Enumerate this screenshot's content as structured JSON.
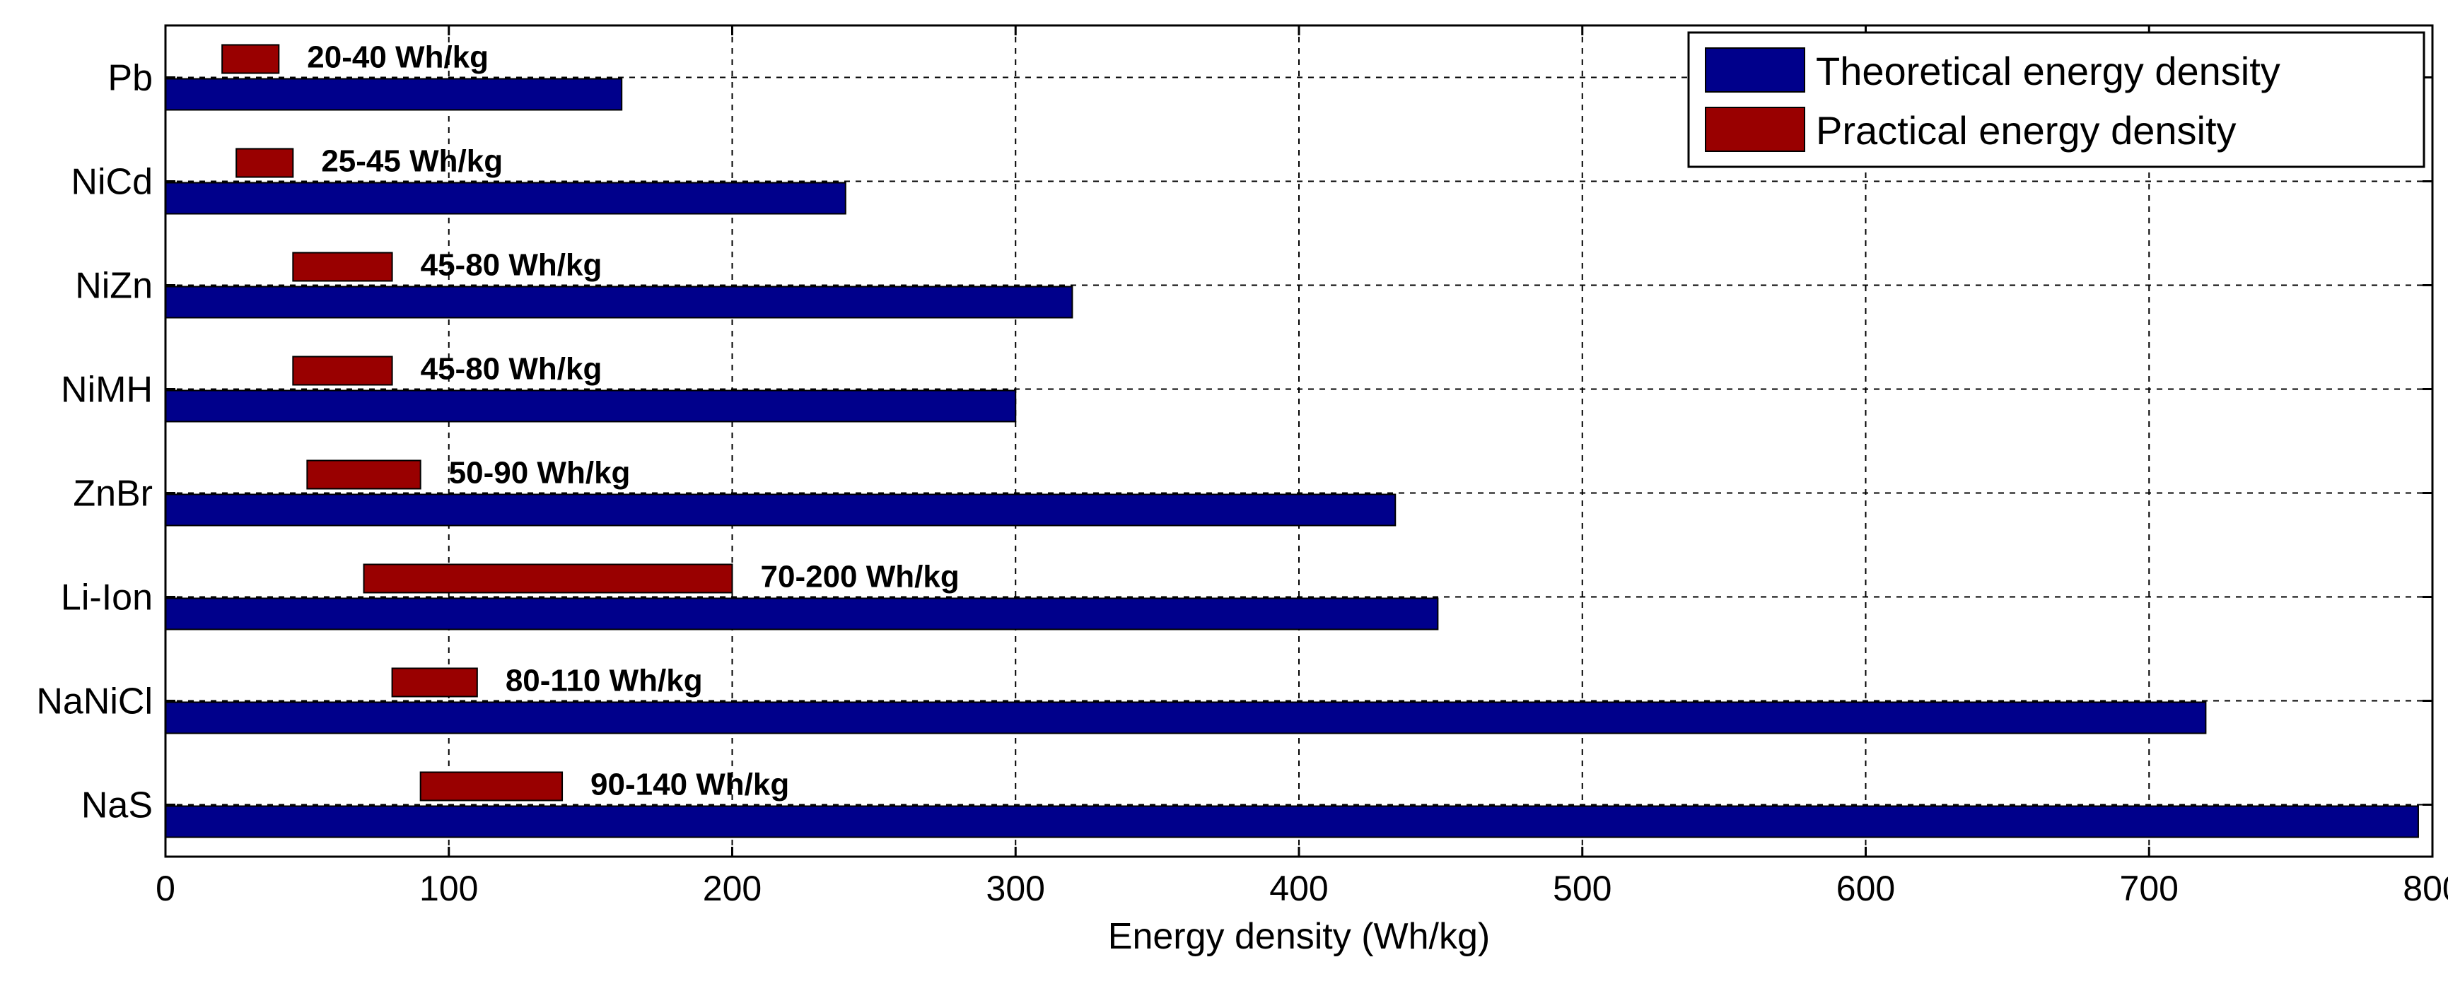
{
  "chart_data": {
    "type": "bar",
    "orientation": "horizontal",
    "categories": [
      "Pb",
      "NiCd",
      "NiZn",
      "NiMH",
      "ZnBr",
      "Li-Ion",
      "NaNiCl",
      "NaS"
    ],
    "series": [
      {
        "name": "Theoretical energy density",
        "color": "#00008b",
        "values": [
          161,
          240,
          320,
          300,
          434,
          449,
          720,
          795
        ]
      },
      {
        "name": "Practical energy density",
        "color": "#990000",
        "ranges": [
          [
            20,
            40
          ],
          [
            25,
            45
          ],
          [
            45,
            80
          ],
          [
            45,
            80
          ],
          [
            50,
            90
          ],
          [
            70,
            200
          ],
          [
            80,
            110
          ],
          [
            90,
            140
          ]
        ]
      }
    ],
    "annotations": [
      "20-40 Wh/kg",
      "25-45 Wh/kg",
      "45-80 Wh/kg",
      "45-80 Wh/kg",
      "50-90 Wh/kg",
      "70-200 Wh/kg",
      "80-110 Wh/kg",
      "90-140 Wh/kg"
    ],
    "xlabel": "Energy density (Wh/kg)",
    "xlim": [
      0,
      800
    ],
    "xticks": [
      0,
      100,
      200,
      300,
      400,
      500,
      600,
      700,
      800
    ],
    "grid": true,
    "legend_position": "top-right"
  }
}
